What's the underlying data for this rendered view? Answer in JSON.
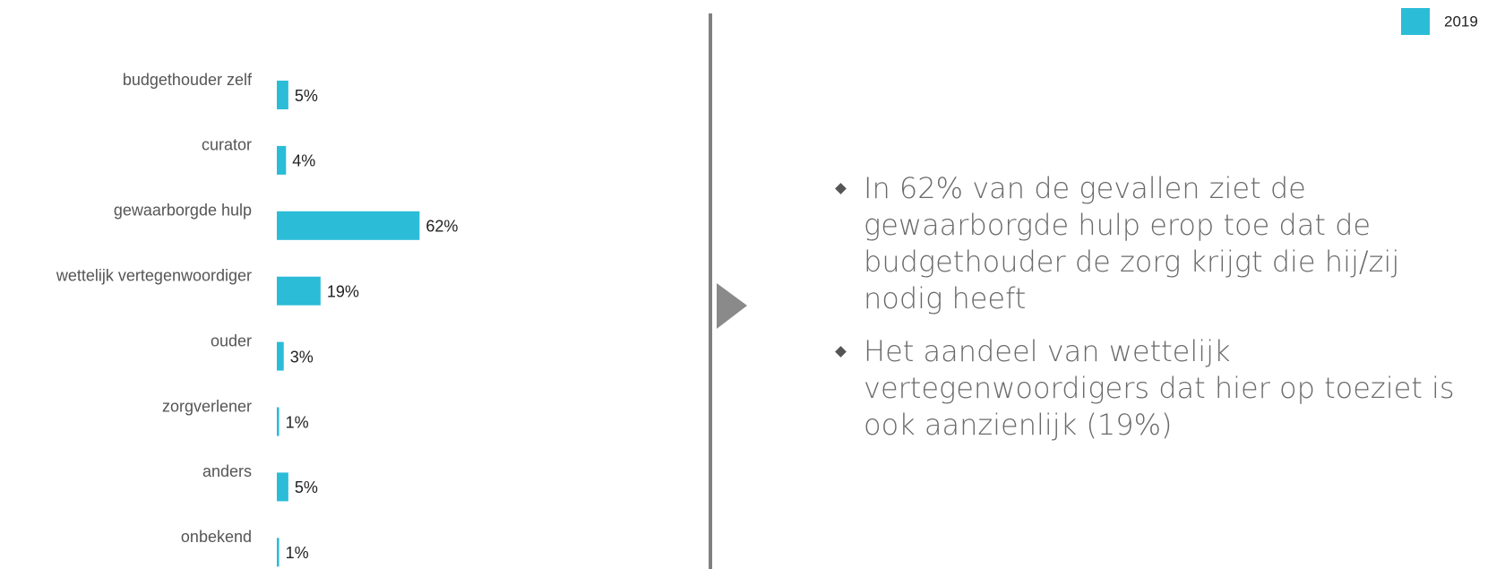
{
  "chart_data": {
    "type": "bar",
    "horizontal": true,
    "categories": [
      "budgethouder zelf",
      "curator",
      "gewaarborgde hulp",
      "wettelijk vertegenwoordiger",
      "ouder",
      "zorgverlener",
      "anders",
      "onbekend"
    ],
    "series": [
      {
        "name": "2019",
        "color": "#2bbcd8",
        "values": [
          5,
          4,
          62,
          19,
          3,
          1,
          5,
          1
        ],
        "value_labels": [
          "5%",
          "4%",
          "62%",
          "19%",
          "3%",
          "1%",
          "5%",
          "1%"
        ]
      }
    ],
    "legend": "top-right"
  },
  "bullets": [
    "In 62% van de gevallen ziet de gewaarborgde hulp erop toe dat de budgethouder de zorg krijgt die hij/zij nodig heeft",
    "Het aandeel van wettelijk vertegenwoordigers dat hier op toeziet is ook aanzienlijk (19%)"
  ]
}
